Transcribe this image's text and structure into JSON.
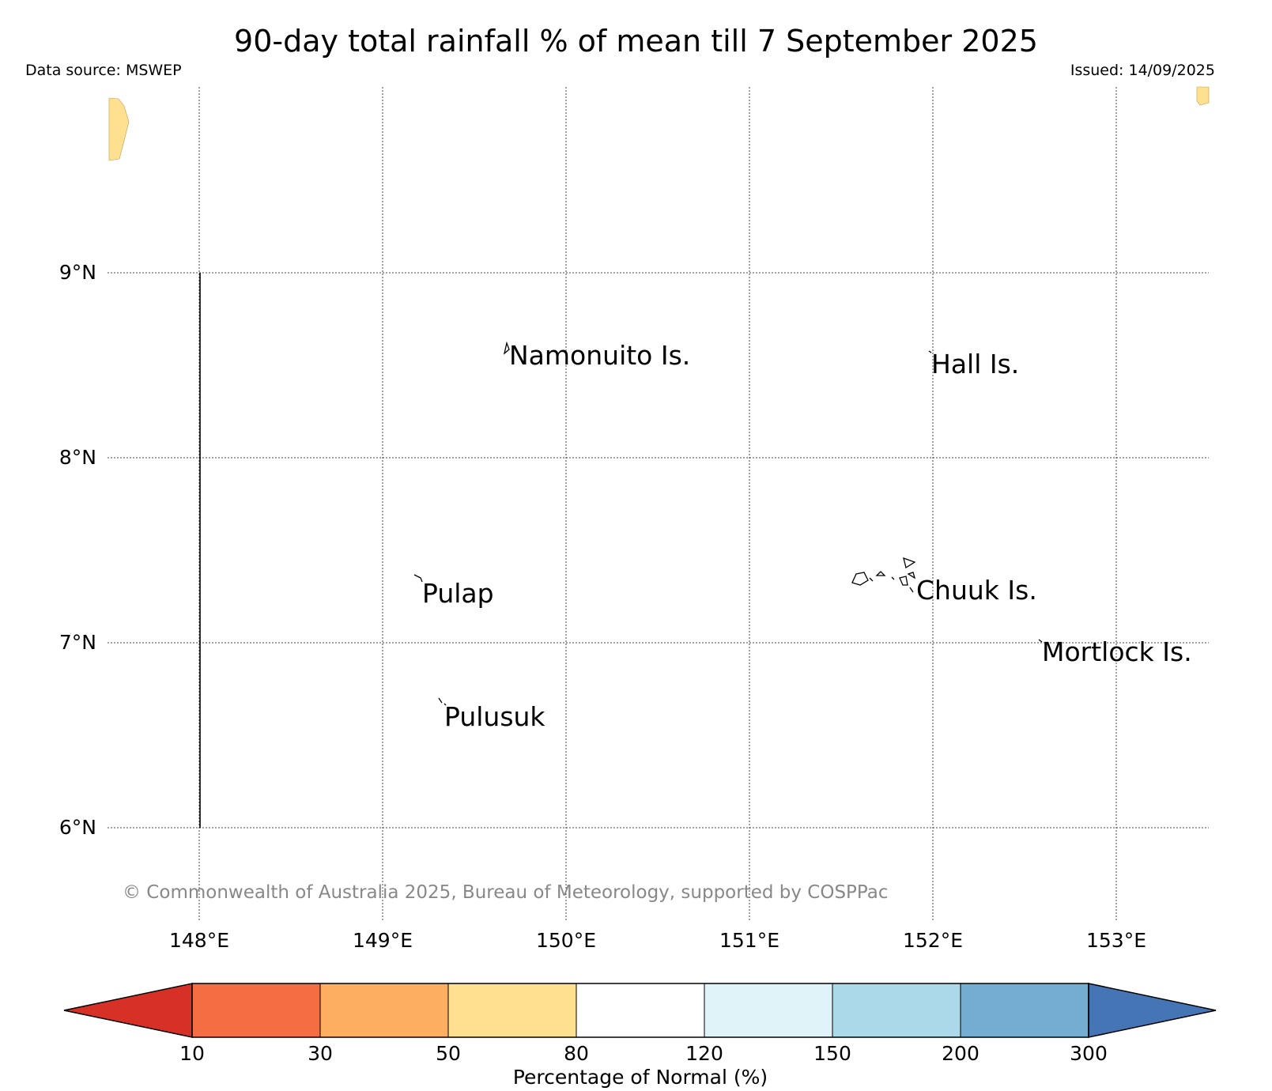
{
  "header": {
    "title": "90-day total rainfall % of mean till 7 September 2025",
    "data_source": "Data source: MSWEP",
    "issued": "Issued: 14/09/2025"
  },
  "map": {
    "lat_labels": [
      "9°N",
      "8°N",
      "7°N",
      "6°N"
    ],
    "lon_labels": [
      "148°E",
      "149°E",
      "150°E",
      "151°E",
      "152°E",
      "153°E"
    ],
    "places": [
      "Namonuito Is.",
      "Hall Is.",
      "Pulap",
      "Chuuk Is.",
      "Mortlock Is.",
      "Pulusuk"
    ],
    "copyright": "© Commonwealth of Australia 2025, Bureau of Meteorology, supported by COSPPac"
  },
  "legend": {
    "title": "Percentage of Normal (%)",
    "ticks": [
      "10",
      "30",
      "50",
      "80",
      "120",
      "150",
      "200",
      "300"
    ],
    "colors": [
      "#d73027",
      "#f46d43",
      "#fdae61",
      "#fee090",
      "#ffffff",
      "#e0f3f8",
      "#abd9e9",
      "#74add1",
      "#4575b4"
    ]
  },
  "colors": {
    "land_patch": "#fee090"
  }
}
